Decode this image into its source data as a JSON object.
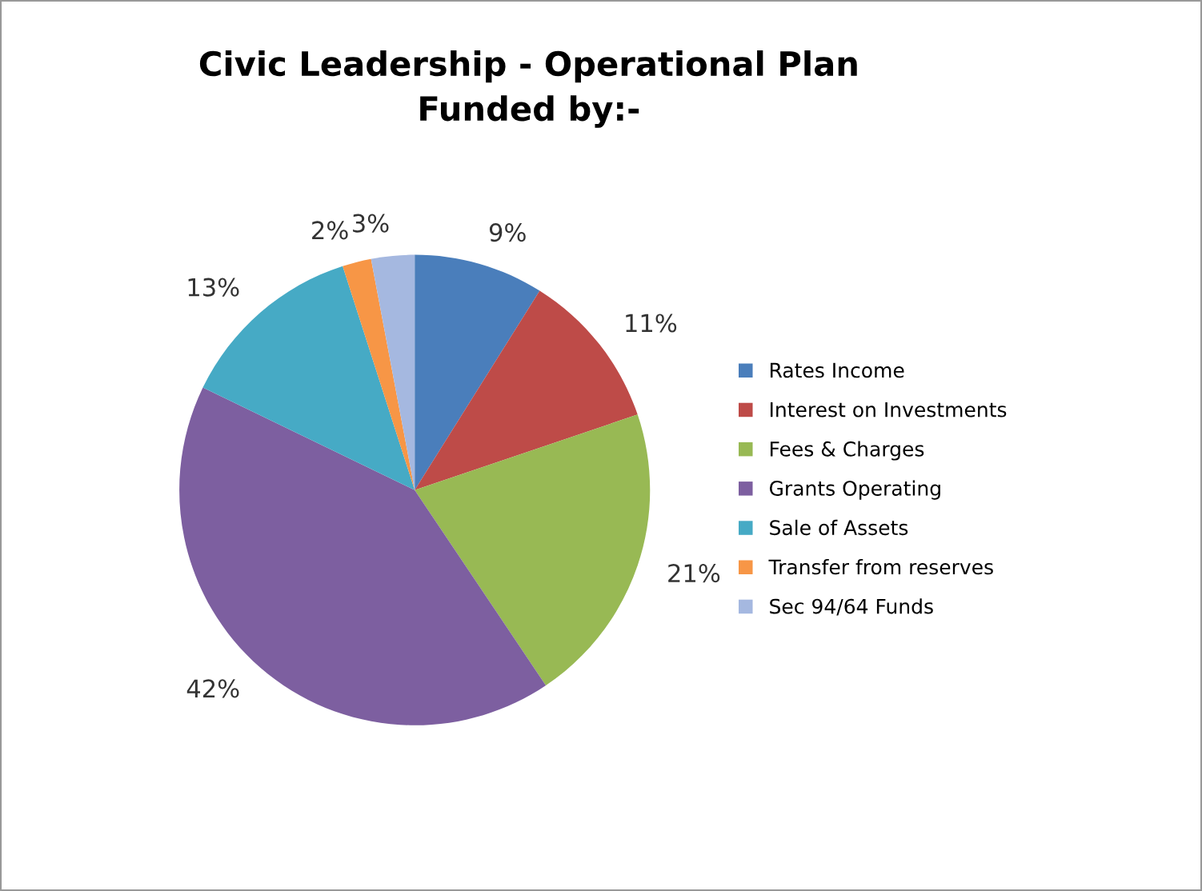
{
  "chart_data": {
    "type": "pie",
    "title": "Civic Leadership - Operational Plan\nFunded by:-",
    "categories": [
      "Rates Income",
      "Interest on Investments",
      "Fees & Charges",
      "Grants Operating",
      "Sale of Assets",
      "Transfer from reserves",
      "Sec 94/64 Funds"
    ],
    "values": [
      9,
      11,
      21,
      42,
      13,
      2,
      3
    ],
    "value_labels": [
      "9%",
      "11%",
      "21%",
      "42%",
      "13%",
      "2%",
      "3%"
    ],
    "colors": [
      "#4a7ebb",
      "#be4b48",
      "#98b954",
      "#7d5fa0",
      "#46aac5",
      "#f79646",
      "#a5b8e0"
    ],
    "legend": "right"
  }
}
